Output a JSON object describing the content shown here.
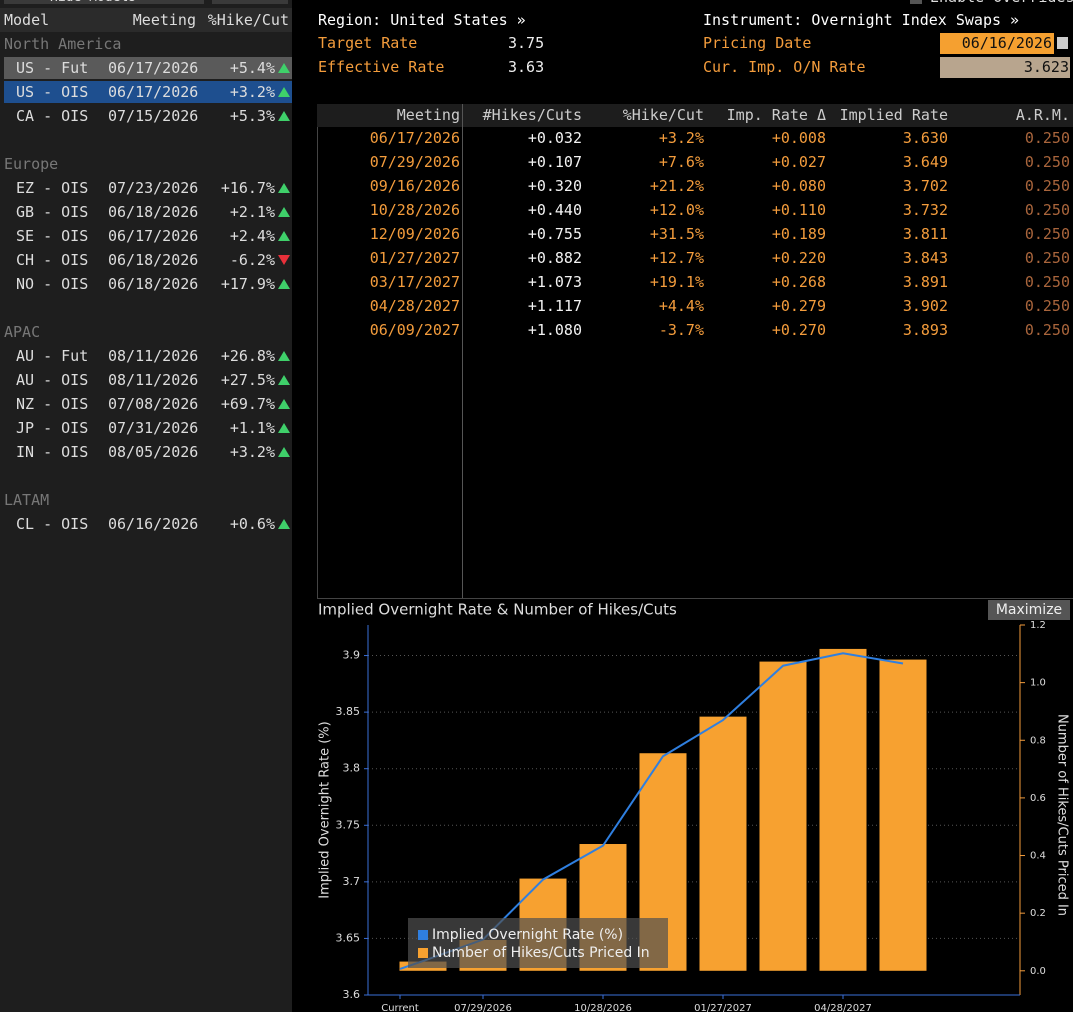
{
  "left_panel": {
    "button": "Hide Models",
    "headers": [
      "Model",
      "Meeting",
      "%Hike/Cut"
    ],
    "groups": [
      {
        "name": "North America",
        "rows": [
          [
            "US - Fut",
            "06/17/2026",
            "+5.4%"
          ],
          [
            "US - OIS",
            "06/17/2026",
            "+3.2%"
          ],
          [
            "CA - OIS",
            "07/15/2026",
            "+5.3%"
          ]
        ]
      },
      {
        "name": "Europe",
        "rows": [
          [
            "EZ - OIS",
            "07/23/2026",
            "+16.7%"
          ],
          [
            "GB - OIS",
            "06/18/2026",
            "+2.1%"
          ],
          [
            "SE - OIS",
            "06/17/2026",
            "+2.4%"
          ],
          [
            "CH - OIS",
            "06/18/2026",
            "-6.2%"
          ],
          [
            "NO - OIS",
            "06/18/2026",
            "+17.9%"
          ]
        ]
      },
      {
        "name": "APAC",
        "rows": [
          [
            "AU - Fut",
            "08/11/2026",
            "+26.8%"
          ],
          [
            "AU - OIS",
            "08/11/2026",
            "+27.5%"
          ],
          [
            "NZ - OIS",
            "07/08/2026",
            "+69.7%"
          ],
          [
            "JP - OIS",
            "07/31/2026",
            "+1.1%"
          ],
          [
            "IN - OIS",
            "08/05/2026",
            "+3.2%"
          ]
        ]
      },
      {
        "name": "LATAM",
        "rows": [
          [
            "CL - OIS",
            "06/16/2026",
            "+0.6%"
          ]
        ]
      }
    ]
  },
  "header": {
    "region": "Region: United States »",
    "instrument": "Instrument: Overnight Index Swaps »",
    "overrides": "Enable Overrides",
    "target_rate_label": "Target Rate",
    "target_rate": "3.75",
    "effective_rate_label": "Effective Rate",
    "effective_rate": "3.63",
    "pricing_date_label": "Pricing Date",
    "pricing_date": "06/16/2026",
    "cur_rate_label": "Cur. Imp. O/N Rate",
    "cur_rate": "3.623"
  },
  "table": {
    "columns": [
      "Meeting",
      "#Hikes/Cuts",
      "%Hike/Cut",
      "Imp. Rate Δ",
      "Implied Rate",
      "A.R.M."
    ],
    "rows": [
      [
        "06/17/2026",
        "+0.032",
        "+3.2%",
        "+0.008",
        "3.630",
        "0.250"
      ],
      [
        "07/29/2026",
        "+0.107",
        "+7.6%",
        "+0.027",
        "3.649",
        "0.250"
      ],
      [
        "09/16/2026",
        "+0.320",
        "+21.2%",
        "+0.080",
        "3.702",
        "0.250"
      ],
      [
        "10/28/2026",
        "+0.440",
        "+12.0%",
        "+0.110",
        "3.732",
        "0.250"
      ],
      [
        "12/09/2026",
        "+0.755",
        "+31.5%",
        "+0.189",
        "3.811",
        "0.250"
      ],
      [
        "01/27/2027",
        "+0.882",
        "+12.7%",
        "+0.220",
        "3.843",
        "0.250"
      ],
      [
        "03/17/2027",
        "+1.073",
        "+19.1%",
        "+0.268",
        "3.891",
        "0.250"
      ],
      [
        "04/28/2027",
        "+1.117",
        "+4.4%",
        "+0.279",
        "3.902",
        "0.250"
      ],
      [
        "06/09/2027",
        "+1.080",
        "-3.7%",
        "+0.270",
        "3.893",
        "0.250"
      ]
    ]
  },
  "chart_data": {
    "type": "combo",
    "title": "Implied Overnight Rate & Number of Hikes/Cuts",
    "button": "Maximize",
    "ylabel": "Implied Overnight Rate (%)",
    "y2label": "Number of Hikes/Cuts Priced In",
    "categories": [
      "Current",
      null,
      "07/29/2026",
      null,
      "10/28/2026",
      null,
      "01/27/2027",
      null,
      "04/28/2027",
      null
    ],
    "series": [
      {
        "name": "Implied Overnight Rate (%)",
        "type": "line",
        "color": "#2f7fe0",
        "values": [
          3.623,
          3.63,
          3.649,
          3.702,
          3.732,
          3.811,
          3.843,
          3.891,
          3.902,
          3.893
        ]
      },
      {
        "name": "Number of Hikes/Cuts Priced In",
        "type": "bar",
        "color": "#f7a130",
        "axis": "y2",
        "values": [
          null,
          0.032,
          0.107,
          0.32,
          0.44,
          0.755,
          0.882,
          1.073,
          1.117,
          1.08
        ]
      }
    ],
    "ylim": [
      3.6,
      3.927
    ],
    "yticks": [
      3.6,
      3.65,
      3.7,
      3.75,
      3.8,
      3.85,
      3.9
    ],
    "y2lim": [
      -0.084,
      1.2
    ],
    "y2ticks": [
      {
        "value": 0,
        "label": "0.0"
      },
      0.2,
      0.4,
      0.6,
      0.8,
      {
        "value": 1,
        "label": "1.0"
      },
      {
        "value": 1.2,
        "label": "1.2"
      }
    ],
    "grid": true,
    "legend": "lower left"
  }
}
